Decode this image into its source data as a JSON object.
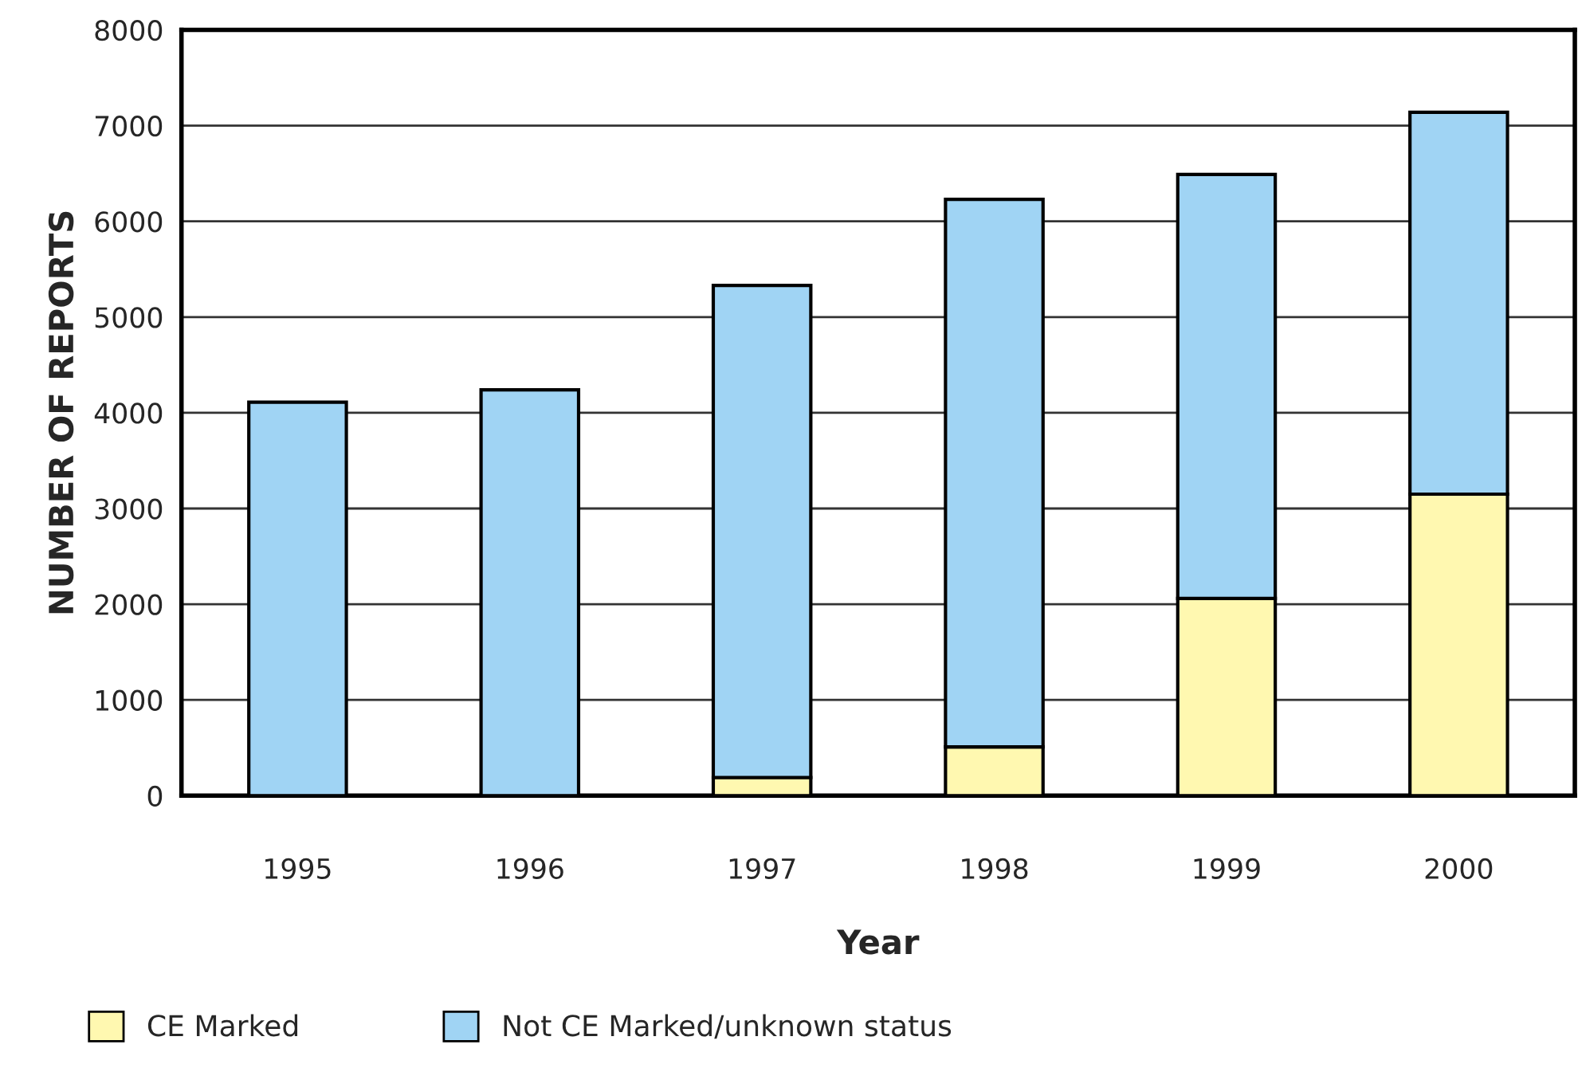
{
  "chart_data": {
    "type": "bar",
    "stacked": true,
    "xlabel": "Year",
    "ylabel": "NUMBER OF REPORTS",
    "categories": [
      "1995",
      "1996",
      "1997",
      "1998",
      "1999",
      "2000"
    ],
    "series": [
      {
        "name": "CE Marked",
        "color": "#fff8b0",
        "values": [
          0,
          0,
          190,
          510,
          2060,
          3150
        ]
      },
      {
        "name": "Not CE Marked/unknown status",
        "color": "#a0d4f4",
        "values": [
          4110,
          4240,
          5140,
          5720,
          4430,
          3990
        ]
      }
    ],
    "ylim": [
      0,
      8000
    ],
    "yticks": [
      0,
      1000,
      2000,
      3000,
      4000,
      5000,
      6000,
      7000,
      8000
    ],
    "grid": "y",
    "legend": "bottom"
  }
}
